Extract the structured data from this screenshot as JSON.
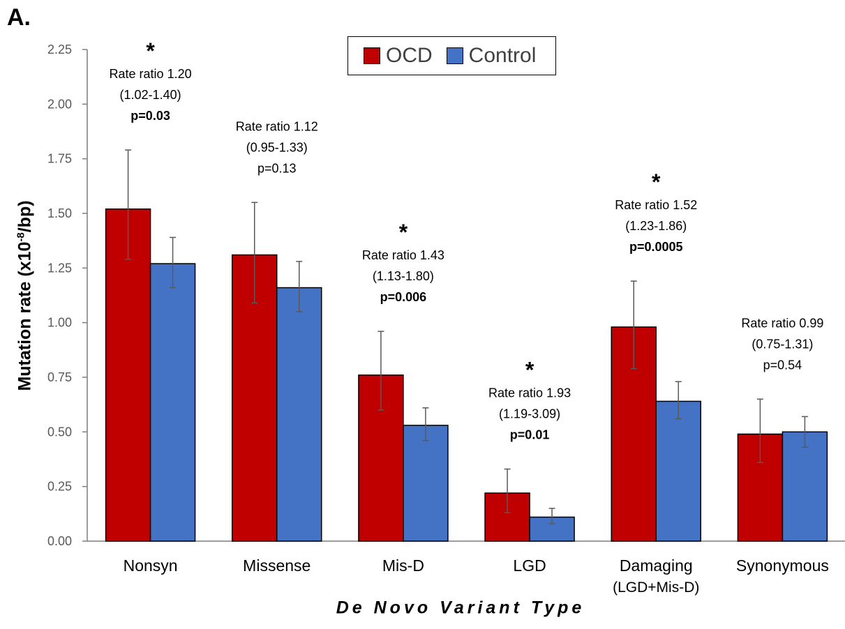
{
  "panel_label": "A.",
  "colors": {
    "ocd": "#C00000",
    "control": "#4472C4",
    "axis": "#7f7f7f",
    "error_bar": "#595959"
  },
  "chart_data": {
    "type": "bar",
    "ylabel_prefix": "Mutation rate (x10",
    "ylabel_sup": "-8",
    "ylabel_suffix": "/bp)",
    "xlabel": "De Novo Variant Type",
    "ylim": [
      0,
      2.25
    ],
    "yticks": [
      "0.00",
      "0.25",
      "0.50",
      "0.75",
      "1.00",
      "1.25",
      "1.50",
      "1.75",
      "2.00",
      "2.25"
    ],
    "legend_position": "top-center",
    "categories": [
      [
        "Nonsyn"
      ],
      [
        "Missense"
      ],
      [
        "Mis-D"
      ],
      [
        "LGD"
      ],
      [
        "Damaging",
        "(LGD+Mis-D)"
      ],
      [
        "Synonymous"
      ]
    ],
    "series": [
      {
        "name": "OCD",
        "values": [
          1.52,
          1.31,
          0.76,
          0.22,
          0.98,
          0.49
        ],
        "err_low": [
          1.29,
          1.09,
          0.6,
          0.13,
          0.79,
          0.36
        ],
        "err_high": [
          1.79,
          1.55,
          0.96,
          0.33,
          1.19,
          0.65
        ]
      },
      {
        "name": "Control",
        "values": [
          1.27,
          1.16,
          0.53,
          0.11,
          0.64,
          0.5
        ],
        "err_low": [
          1.16,
          1.05,
          0.46,
          0.08,
          0.56,
          0.43
        ],
        "err_high": [
          1.39,
          1.28,
          0.61,
          0.15,
          0.73,
          0.57
        ]
      }
    ],
    "annotations": [
      {
        "star": "*",
        "lines": [
          "Rate ratio 1.20",
          "(1.02-1.40)",
          "p=0.03"
        ],
        "bold_last": true
      },
      {
        "star": "",
        "lines": [
          "Rate ratio 1.12",
          "(0.95-1.33)",
          "p=0.13"
        ],
        "bold_last": false
      },
      {
        "star": "*",
        "lines": [
          "Rate ratio 1.43",
          "(1.13-1.80)",
          "p=0.006"
        ],
        "bold_last": true
      },
      {
        "star": "*",
        "lines": [
          "Rate ratio 1.93",
          "(1.19-3.09)",
          "p=0.01"
        ],
        "bold_last": true
      },
      {
        "star": "*",
        "lines": [
          "Rate ratio 1.52",
          "(1.23-1.86)",
          "p=0.0005"
        ],
        "bold_last": true
      },
      {
        "star": "",
        "lines": [
          "Rate ratio 0.99",
          "(0.75-1.31)",
          "p=0.54"
        ],
        "bold_last": false
      }
    ]
  }
}
